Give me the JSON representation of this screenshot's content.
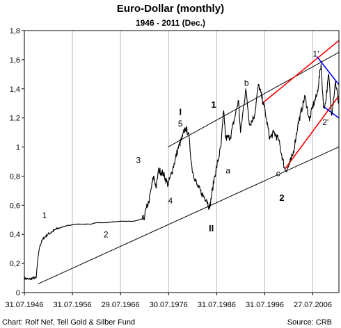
{
  "chart_data": {
    "type": "line",
    "title": "Euro-Dollar (monthly)",
    "subtitle": "1946 -  2011 (Dec.)",
    "x_range": [
      "1946-07-31",
      "2011-12-31"
    ],
    "ylim": [
      0,
      1.8
    ],
    "y_ticks": [
      "0",
      "0,2",
      "0,4",
      "0,6",
      "0,8",
      "1",
      "1,2",
      "1,4",
      "1,6",
      "1,8"
    ],
    "x_ticks": [
      "31.07.1946",
      "31.07.1956",
      "29.07.1966",
      "30.07.1976",
      "31.07.1986",
      "31.07.1996",
      "27.07.2006"
    ],
    "grid_x": true,
    "grid_y": false,
    "series": [
      {
        "points": [
          [
            "1946-07",
            0.1
          ],
          [
            "1947-06",
            0.09
          ],
          [
            "1948-06",
            0.1
          ],
          [
            "1949-01",
            0.1
          ],
          [
            "1949-06",
            0.25
          ],
          [
            "1949-10",
            0.32
          ],
          [
            "1950-06",
            0.37
          ],
          [
            "1951-06",
            0.4
          ],
          [
            "1952-06",
            0.42
          ],
          [
            "1953-06",
            0.44
          ],
          [
            "1954-06",
            0.45
          ],
          [
            "1955-06",
            0.46
          ],
          [
            "1957-06",
            0.47
          ],
          [
            "1960-06",
            0.47
          ],
          [
            "1961-06",
            0.48
          ],
          [
            "1963-06",
            0.48
          ],
          [
            "1966-06",
            0.49
          ],
          [
            "1969-06",
            0.49
          ],
          [
            "1971-06",
            0.51
          ],
          [
            "1971-12",
            0.58
          ],
          [
            "1972-06",
            0.62
          ],
          [
            "1973-06",
            0.8
          ],
          [
            "1974-01",
            0.72
          ],
          [
            "1974-06",
            0.84
          ],
          [
            "1975-06",
            0.82
          ],
          [
            "1976-06",
            0.74
          ],
          [
            "1977-06",
            0.85
          ],
          [
            "1978-06",
            0.98
          ],
          [
            "1979-06",
            1.07
          ],
          [
            "1980-01",
            1.13
          ],
          [
            "1980-09",
            1.1
          ],
          [
            "1981-06",
            0.85
          ],
          [
            "1982-06",
            0.74
          ],
          [
            "1983-06",
            0.68
          ],
          [
            "1984-06",
            0.64
          ],
          [
            "1985-02",
            0.58
          ],
          [
            "1986-01",
            0.78
          ],
          [
            "1987-06",
            1.0
          ],
          [
            "1988-01",
            1.25
          ],
          [
            "1988-06",
            1.06
          ],
          [
            "1989-06",
            1.07
          ],
          [
            "1990-06",
            1.22
          ],
          [
            "1991-02",
            1.32
          ],
          [
            "1991-07",
            1.1
          ],
          [
            "1992-08",
            1.4
          ],
          [
            "1993-06",
            1.15
          ],
          [
            "1994-06",
            1.22
          ],
          [
            "1995-04",
            1.43
          ],
          [
            "1996-06",
            1.28
          ],
          [
            "1997-08",
            1.06
          ],
          [
            "1998-06",
            1.1
          ],
          [
            "1999-06",
            1.05
          ],
          [
            "2000-10",
            0.84
          ],
          [
            "2001-06",
            0.86
          ],
          [
            "2002-06",
            0.95
          ],
          [
            "2003-06",
            1.15
          ],
          [
            "2004-12",
            1.35
          ],
          [
            "2005-11",
            1.18
          ],
          [
            "2006-06",
            1.27
          ],
          [
            "2007-06",
            1.36
          ],
          [
            "2008-04",
            1.57
          ],
          [
            "2008-10",
            1.27
          ],
          [
            "2009-03",
            1.3
          ],
          [
            "2009-11",
            1.5
          ],
          [
            "2010-06",
            1.22
          ],
          [
            "2011-04",
            1.45
          ],
          [
            "2011-12",
            1.3
          ]
        ]
      }
    ],
    "trendlines": [
      {
        "color": "#000000",
        "from": [
          "1949-06",
          0.06
        ],
        "to": [
          "2011-12",
          1.0
        ]
      },
      {
        "color": "#000000",
        "from": [
          "1976-06",
          1.0
        ],
        "to": [
          "2011-12",
          1.65
        ]
      },
      {
        "color": "#ff0000",
        "from": [
          "1996-01",
          1.3
        ],
        "to": [
          "2011-12",
          1.73
        ]
      },
      {
        "color": "#ff0000",
        "from": [
          "2000-10",
          0.85
        ],
        "to": [
          "2011-12",
          1.35
        ]
      },
      {
        "color": "#0000ff",
        "from": [
          "2007-06",
          1.62
        ],
        "to": [
          "2011-12",
          1.43
        ]
      },
      {
        "color": "#0000ff",
        "from": [
          "2008-09",
          1.28
        ],
        "to": [
          "2011-12",
          1.2
        ]
      }
    ],
    "annotations": [
      {
        "text": "1",
        "at": [
          "1950-10",
          0.51
        ],
        "style": "normal"
      },
      {
        "text": "2",
        "at": [
          "1963-07",
          0.38
        ],
        "style": "normal"
      },
      {
        "text": "3",
        "at": [
          "1970-04",
          0.89
        ],
        "style": "normal"
      },
      {
        "text": "4",
        "at": [
          "1976-12",
          0.61
        ],
        "style": "normal"
      },
      {
        "text": "5",
        "at": [
          "1979-01",
          1.14
        ],
        "style": "normal"
      },
      {
        "text": "I",
        "at": [
          "1979-01",
          1.22
        ],
        "style": "bold"
      },
      {
        "text": "II",
        "at": [
          "1985-06",
          0.42
        ],
        "style": "bold"
      },
      {
        "text": "1",
        "at": [
          "1985-12",
          1.27
        ],
        "style": "bold"
      },
      {
        "text": "a",
        "at": [
          "1988-12",
          0.82
        ],
        "style": "normal"
      },
      {
        "text": "b",
        "at": [
          "1992-10",
          1.42
        ],
        "style": "normal"
      },
      {
        "text": "c",
        "at": [
          "1999-05",
          0.8
        ],
        "style": "normal"
      },
      {
        "text": "2",
        "at": [
          "2000-02",
          0.63
        ],
        "style": "bold"
      },
      {
        "text": "1'",
        "at": [
          "2007-03",
          1.62
        ],
        "style": "normal"
      },
      {
        "text": "2'",
        "at": [
          "2009-03",
          1.15
        ],
        "style": "normal"
      }
    ],
    "line_color": "#000000"
  },
  "footer": {
    "credit": "Chart: Rolf Nef, Tell Gold & Silber Fund",
    "source": "Source: CRB"
  }
}
